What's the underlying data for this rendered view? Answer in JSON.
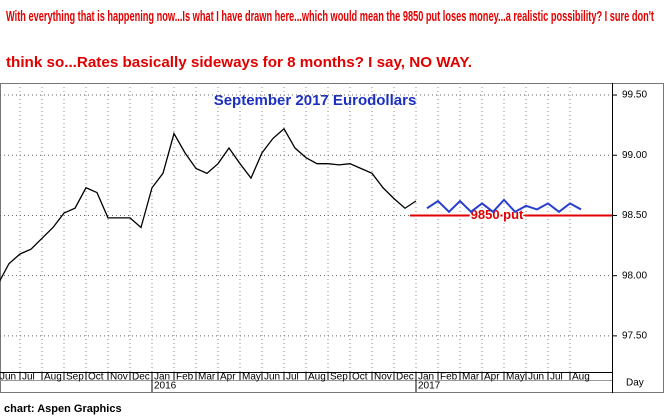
{
  "chart_data": {
    "type": "line",
    "header_lines": [
      "With everything that is happening now...Is what I have drawn here...which would mean the 9850 put loses money...a realistic possibility? I sure don't",
      "think so...Rates basically sideways for 8 months? I say, NO WAY."
    ],
    "header_color": "#e00000",
    "title": "September 2017 Eurodollars",
    "title_color": "#1a2fc0",
    "x_label": "Day",
    "categories": [
      "Jun",
      null,
      "Jul",
      null,
      "Aug",
      null,
      "Sep",
      null,
      "Oct",
      null,
      "Nov",
      null,
      "Dec",
      null,
      "Jan",
      null,
      "Feb",
      null,
      "Mar",
      null,
      "Apr",
      null,
      "May",
      null,
      "Jun",
      null,
      "Jul",
      null,
      "Aug",
      null,
      "Sep",
      null,
      "Oct",
      null,
      "Nov",
      null,
      "Dec",
      null,
      "Jan",
      null,
      "Feb",
      null,
      "Mar",
      null,
      "Apr",
      null,
      "May",
      null,
      "Jun",
      null,
      "Jul",
      null,
      "Aug",
      null
    ],
    "years": [
      "2016",
      "2017"
    ],
    "series": [
      {
        "color": "#000000",
        "values": [
          97.93,
          98.1,
          98.18,
          98.22,
          98.31,
          98.4,
          98.52,
          98.56,
          98.73,
          98.69,
          98.48,
          98.48,
          98.48,
          98.4,
          98.73,
          98.85,
          99.18,
          99.02,
          98.89,
          98.85,
          98.93,
          99.06,
          98.93,
          98.81,
          99.02,
          99.14,
          99.22,
          99.06,
          98.98,
          98.93,
          98.93,
          98.92,
          98.93,
          98.89,
          98.85,
          98.73,
          98.64,
          98.56,
          98.62,
          null,
          null,
          null,
          null,
          null,
          null,
          null,
          null,
          null,
          null,
          null,
          null,
          null,
          null,
          null
        ]
      },
      {
        "color": "#2a3fd0",
        "values": [
          null,
          null,
          null,
          null,
          null,
          null,
          null,
          null,
          null,
          null,
          null,
          null,
          null,
          null,
          null,
          null,
          null,
          null,
          null,
          null,
          null,
          null,
          null,
          null,
          null,
          null,
          null,
          null,
          null,
          null,
          null,
          null,
          null,
          null,
          null,
          null,
          null,
          null,
          null,
          98.56,
          98.62,
          98.53,
          98.62,
          98.53,
          98.6,
          98.53,
          98.63,
          98.53,
          98.58,
          98.55,
          98.6,
          98.53,
          98.6,
          98.55
        ]
      }
    ],
    "reference_line": {
      "value": 98.5,
      "label": "9850 put",
      "color": "#e00000"
    },
    "ylim": [
      97.2,
      99.6
    ],
    "yticks": [
      {
        "value": 97.5,
        "label": "97.50"
      },
      {
        "value": 98,
        "label": "98.00"
      },
      {
        "value": 98.5,
        "label": "98.50"
      },
      {
        "value": 99,
        "label": "99.00"
      },
      {
        "value": 99.5,
        "label": "99.50"
      }
    ],
    "grid": true,
    "source": "chart: Aspen Graphics"
  }
}
